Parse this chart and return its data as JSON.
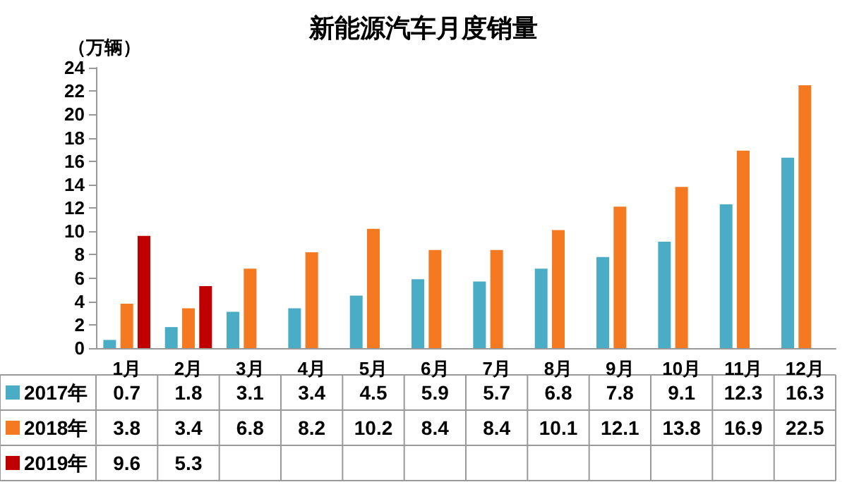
{
  "chart_data": {
    "type": "bar",
    "title": "新能源汽车月度销量",
    "ylabel": "（万辆）",
    "categories": [
      "1月",
      "2月",
      "3月",
      "4月",
      "5月",
      "6月",
      "7月",
      "8月",
      "9月",
      "10月",
      "11月",
      "12月"
    ],
    "series": [
      {
        "name": "2017年",
        "color": "#4bacc6",
        "values": [
          0.7,
          1.8,
          3.1,
          3.4,
          4.5,
          5.9,
          5.7,
          6.8,
          7.8,
          9.1,
          12.3,
          16.3
        ]
      },
      {
        "name": "2018年",
        "color": "#f47920",
        "values": [
          3.8,
          3.4,
          6.8,
          8.2,
          10.2,
          8.4,
          8.4,
          10.1,
          12.1,
          13.8,
          16.9,
          22.5
        ]
      },
      {
        "name": "2019年",
        "color": "#c00000",
        "values": [
          9.6,
          5.3,
          null,
          null,
          null,
          null,
          null,
          null,
          null,
          null,
          null,
          null
        ]
      }
    ],
    "ylim": [
      0,
      24
    ],
    "yticks": [
      0,
      2,
      4,
      6,
      8,
      10,
      12,
      14,
      16,
      18,
      20,
      22,
      24
    ],
    "grid": false,
    "legend": "bottom",
    "data_labels": true
  }
}
